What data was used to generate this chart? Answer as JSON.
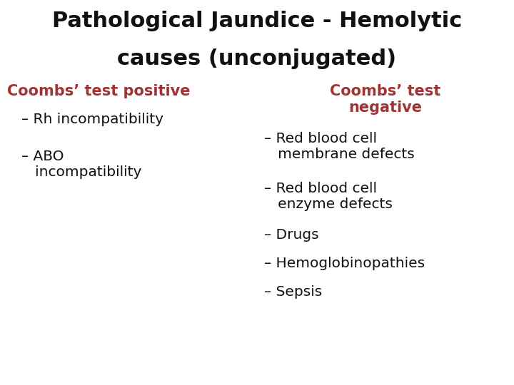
{
  "title_line1": "Pathological Jaundice - Hemolytic",
  "title_line2": "causes (unconjugated)",
  "title_color": "#111111",
  "title_fontsize": 22,
  "bg_color": "#ffffff",
  "red_color": "#a03333",
  "black_color": "#111111",
  "left_header": "Coombs’ test positive",
  "left_items": [
    "– Rh incompatibility",
    "– ABO\n   incompatibility"
  ],
  "right_header_line1": "Coombs’ test",
  "right_header_line2": "negative",
  "right_items": [
    "– Red blood cell\n   membrane defects",
    "– Red blood cell\n   enzyme defects",
    "– Drugs",
    "– Hemoglobinopathies",
    "– Sepsis"
  ],
  "header_fontsize": 15,
  "item_fontsize": 14.5
}
